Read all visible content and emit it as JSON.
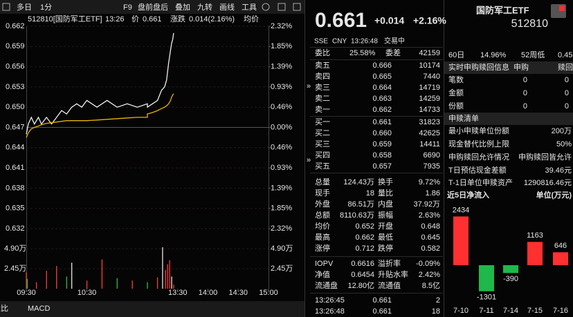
{
  "toolbar": {
    "items": [
      "多日",
      "1分",
      "F9",
      "盘前盘后",
      "叠加",
      "九转",
      "画线",
      "工具"
    ]
  },
  "chart_header": {
    "title": "512810[国防军工ETF]",
    "time": "13:26",
    "price_label": "价",
    "price": "0.661",
    "change_label": "涨跌",
    "change": "0.014(2.16%)",
    "avg_label": "均价"
  },
  "chart_data": [
    {
      "type": "line",
      "x": [
        "09:30",
        "09:32",
        "09:35",
        "09:38",
        "09:42",
        "09:45",
        "09:50",
        "09:55",
        "10:00",
        "10:05",
        "10:10",
        "10:15",
        "10:20",
        "10:25",
        "10:30",
        "10:40",
        "10:50",
        "11:00",
        "11:10",
        "11:20",
        "11:30",
        "13:00",
        "13:05",
        "13:10",
        "13:14",
        "13:17",
        "13:19",
        "13:21",
        "13:23",
        "13:24",
        "13:25",
        "13:26"
      ],
      "series": [
        {
          "color": "#f0f0f0",
          "values": [
            0.646,
            0.6475,
            0.6485,
            0.6475,
            0.6485,
            0.6475,
            0.6485,
            0.6475,
            0.6485,
            0.6495,
            0.649,
            0.65,
            0.6505,
            0.65,
            0.651,
            0.65,
            0.651,
            0.65,
            0.6505,
            0.65,
            0.6505,
            0.65,
            0.6505,
            0.651,
            0.6525,
            0.653,
            0.654,
            0.6565,
            0.6585,
            0.6595,
            0.66,
            0.661
          ]
        },
        {
          "color": "#e8b400",
          "values": [
            0.6455,
            0.6462,
            0.6468,
            0.647,
            0.6472,
            0.6474,
            0.6476,
            0.6477,
            0.6478,
            0.6479,
            0.648,
            0.648,
            0.648,
            0.648,
            0.648,
            0.6481,
            0.6482,
            0.6483,
            0.6484,
            0.6485,
            0.6485,
            0.649,
            0.6492,
            0.6495,
            0.6498,
            0.65,
            0.6502,
            0.6505,
            0.651,
            0.6515,
            0.6518,
            0.652
          ]
        }
      ],
      "ylim": [
        0.632,
        0.662
      ],
      "yticks": [
        {
          "value": 0.662,
          "label": "0.662"
        },
        {
          "value": 0.659,
          "label": "0.659"
        },
        {
          "value": 0.656,
          "label": "0.656"
        },
        {
          "value": 0.653,
          "label": "0.653"
        },
        {
          "value": 0.65,
          "label": "0.650"
        },
        {
          "value": 0.647,
          "label": "0.647"
        },
        {
          "value": 0.644,
          "label": "0.644"
        },
        {
          "value": 0.641,
          "label": "0.641"
        },
        {
          "value": 0.638,
          "label": "0.638"
        },
        {
          "value": 0.635,
          "label": "0.635"
        },
        {
          "value": 0.632,
          "label": "0.632"
        }
      ],
      "y2lim": [
        -2.32,
        2.32
      ],
      "y2ticks": [
        {
          "value": 2.32,
          "label": "2.32%"
        },
        {
          "value": 1.85,
          "label": "1.85%"
        },
        {
          "value": 1.39,
          "label": "1.39%"
        },
        {
          "value": 0.93,
          "label": "0.93%"
        },
        {
          "value": 0.46,
          "label": "0.46%"
        },
        {
          "value": 0,
          "label": "0.00%"
        },
        {
          "value": -0.46,
          "label": "0.46%"
        },
        {
          "value": -0.93,
          "label": "0.93%"
        },
        {
          "value": -1.39,
          "label": "1.39%"
        },
        {
          "value": -1.85,
          "label": "1.85%"
        },
        {
          "value": -2.32,
          "label": "2.32%"
        }
      ],
      "xticks": [
        "09:30",
        "10:30",
        "13:30",
        "14:00",
        "14:30",
        "15:00"
      ],
      "grid": true
    },
    {
      "type": "bar",
      "x": [
        "09:30",
        "09:31",
        "09:40",
        "09:50",
        "10:00",
        "10:10",
        "10:15",
        "10:30",
        "10:45",
        "11:00",
        "11:15",
        "13:00",
        "13:10",
        "13:15",
        "13:18",
        "13:20",
        "13:22",
        "13:24",
        "13:26"
      ],
      "values": [
        2.0,
        1.2,
        0.8,
        2.2,
        2.8,
        1.5,
        3.2,
        1.0,
        3.6,
        1.3,
        1.0,
        0.8,
        1.4,
        5.1,
        2.3,
        3.0,
        3.5,
        1.5,
        0.5
      ],
      "colors": [
        "#ff3c3c",
        "#2fc02f",
        "#ff3c3c",
        "#ff3c3c",
        "#ff3c3c",
        "#2fc02f",
        "#e6e6e6",
        "#ff3c3c",
        "#ff3c3c",
        "#2fc02f",
        "#ff3c3c",
        "#2fc02f",
        "#ff3c3c",
        "#e6e6e6",
        "#ff3c3c",
        "#ff3c3c",
        "#ff3c3c",
        "#e6e6e6",
        "#ff3c3c"
      ],
      "ylim": [
        0,
        6.2
      ],
      "yticks": [
        {
          "value": 4.9,
          "label": "4.90万"
        },
        {
          "value": 2.45,
          "label": "2.45万"
        }
      ]
    },
    {
      "type": "bar",
      "title": "近5日净流入",
      "subtitle": "单位(万元)",
      "categories": [
        "7-10",
        "7-11",
        "7-14",
        "7-15",
        "7-16"
      ],
      "values": [
        2434,
        -1301,
        -390,
        1163,
        646
      ],
      "colors": {
        "up": "#ff3030",
        "down": "#1fb84a"
      }
    }
  ],
  "tabs": [
    "量比",
    "MACD"
  ],
  "quote": {
    "name": "国防军工ETF",
    "code": "512810",
    "price": "0.661",
    "change": "+0.014",
    "change_pct": "+2.16%",
    "exchange": "SSE",
    "currency": "CNY",
    "time": "13:26:48",
    "status": "交易中"
  },
  "orderbook": {
    "ratio_label": "委比",
    "ratio": "25.58%",
    "diff_label": "委差",
    "diff": "42159",
    "asks": [
      [
        "卖五",
        "0.666",
        "10174"
      ],
      [
        "卖四",
        "0.665",
        "7440"
      ],
      [
        "卖三",
        "0.664",
        "14719"
      ],
      [
        "卖二",
        "0.663",
        "14259"
      ],
      [
        "卖一",
        "0.662",
        "14733"
      ]
    ],
    "bids": [
      [
        "买一",
        "0.661",
        "31823"
      ],
      [
        "买二",
        "0.660",
        "42625"
      ],
      [
        "买三",
        "0.659",
        "14411"
      ],
      [
        "买四",
        "0.658",
        "6690"
      ],
      [
        "买五",
        "0.657",
        "7935"
      ]
    ]
  },
  "stats": [
    [
      "总量",
      "124.43万",
      "换手",
      "9.72%"
    ],
    [
      "现手",
      "18",
      "量比",
      "1.86"
    ],
    [
      "外盘",
      "86.51万",
      "内盘",
      "37.92万"
    ],
    [
      "总额",
      "8110.63万",
      "振幅",
      "2.63%"
    ],
    [
      "均价",
      "0.652",
      "开盘",
      "0.648"
    ],
    [
      "最高",
      "0.662",
      "最低",
      "0.645"
    ],
    [
      "涨停",
      "0.712",
      "跌停",
      "0.582"
    ],
    [
      "IOPV",
      "0.6616",
      "溢折率",
      "-0.09%"
    ],
    [
      "净值",
      "0.6454",
      "升贴水率",
      "2.42%"
    ],
    [
      "流通盘",
      "12.80亿",
      "流通值",
      "8.5亿"
    ]
  ],
  "trades": [
    [
      "13:26:45",
      "0.661",
      "2"
    ],
    [
      "13:26:48",
      "0.661",
      "18"
    ]
  ],
  "info": {
    "period": [
      "60日",
      "14.96%",
      "52周低",
      "0.45"
    ],
    "realtime": {
      "title": "实时申购赎回信息",
      "cols": [
        "申购",
        "赎回"
      ],
      "rows": [
        [
          "笔数",
          "0",
          "0"
        ],
        [
          "金额",
          "0",
          "0"
        ],
        [
          "份额",
          "0",
          "0"
        ]
      ]
    },
    "list": {
      "title": "申赎清单",
      "rows": [
        [
          "最小申赎单位份额",
          "200万"
        ],
        [
          "现金替代比例上限",
          "50%"
        ],
        [
          "申购赎回允许情况",
          "申购赎回皆允许"
        ],
        [
          "T日预估现金差额",
          "39.46元"
        ],
        [
          "T-1日单位申赎资产",
          "1290816.46元"
        ]
      ]
    }
  }
}
